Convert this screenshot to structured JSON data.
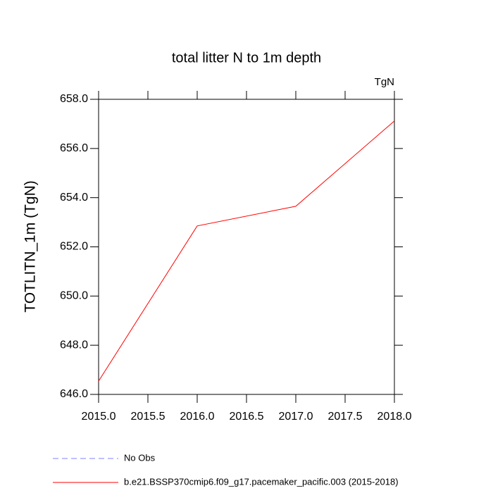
{
  "chart_data": {
    "type": "line",
    "title": "total litter N to 1m depth",
    "units_label": "TgN",
    "y_label": "TOTLITN_1m  (TgN)",
    "x": [
      2015,
      2016,
      2017,
      2018
    ],
    "series": [
      {
        "name": "No Obs",
        "color": "#8080ff",
        "dashed": true,
        "values": [
          null,
          null,
          null,
          null
        ]
      },
      {
        "name": "b.e21.BSSP370cmip6.f09_g17.pacemaker_pacific.003 (2015-2018)",
        "color": "#ff0000",
        "dashed": false,
        "values": [
          646.54,
          652.85,
          653.65,
          657.12
        ]
      }
    ],
    "xlim": [
      2015,
      2018
    ],
    "xticks": [
      {
        "value": 2015,
        "label": "2015.0"
      },
      2015.5,
      {
        "value": 2016,
        "label": "2016.0"
      },
      2016.5,
      {
        "value": 2017,
        "label": "2017.0"
      },
      2017.5,
      {
        "value": 2018,
        "label": "2018.0"
      }
    ],
    "ylim": [
      646,
      658
    ],
    "yticks": [
      {
        "value": 646,
        "label": "646.0"
      },
      {
        "value": 648,
        "label": "648.0"
      },
      {
        "value": 650,
        "label": "650.0"
      },
      {
        "value": 652,
        "label": "652.0"
      },
      {
        "value": 654,
        "label": "654.0"
      },
      {
        "value": 656,
        "label": "656.0"
      },
      {
        "value": 658,
        "label": "658.0"
      }
    ],
    "grid": false
  }
}
